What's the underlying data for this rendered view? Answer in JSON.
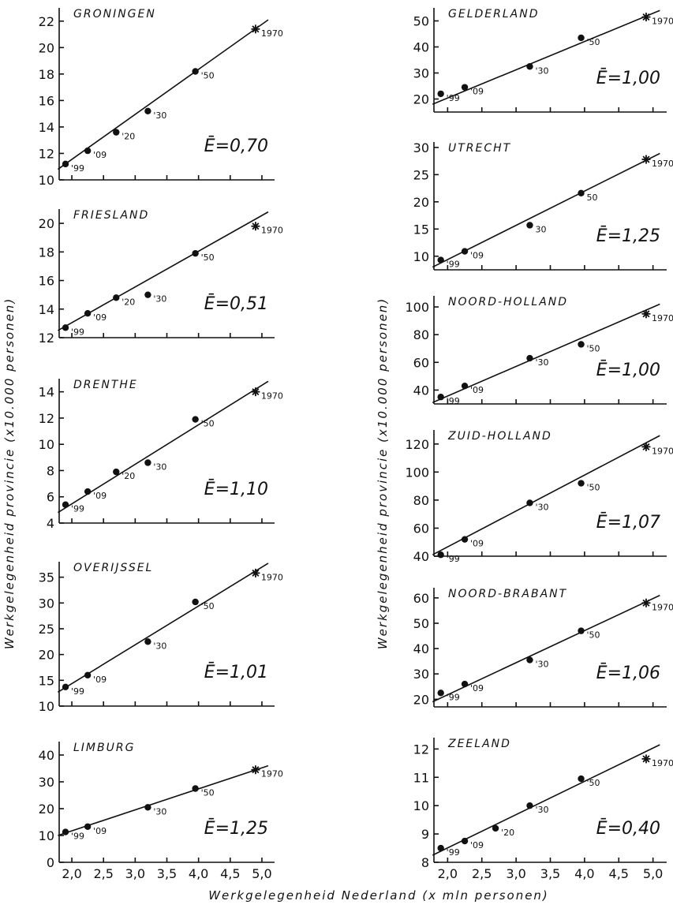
{
  "figure": {
    "ylabel": "Werkgelegenheid provincie (x10.000 personen)",
    "xlabel": "Werkgelegenheid Nederland (x mln personen)"
  },
  "chart_data": [
    {
      "type": "scatter",
      "title": "GRONINGEN",
      "elasticity": "Ē=0,70",
      "yticks": [
        10,
        12,
        14,
        16,
        18,
        20,
        22
      ],
      "ylim": [
        10,
        23
      ],
      "xlim": [
        1.8,
        5.2
      ],
      "points": [
        {
          "x": 1.9,
          "y": 11.2,
          "label": "'99"
        },
        {
          "x": 2.25,
          "y": 12.2,
          "label": "'09"
        },
        {
          "x": 2.7,
          "y": 13.6,
          "label": "'20"
        },
        {
          "x": 3.2,
          "y": 15.2,
          "label": "'30"
        },
        {
          "x": 3.95,
          "y": 18.2,
          "label": "'50"
        },
        {
          "x": 4.9,
          "y": 21.4,
          "label": "1970",
          "marker": "star"
        }
      ],
      "fit": [
        [
          1.78,
          10.8
        ],
        [
          5.1,
          22.1
        ]
      ]
    },
    {
      "type": "scatter",
      "title": "GELDERLAND",
      "elasticity": "Ē=1,00",
      "yticks": [
        20,
        30,
        40,
        50
      ],
      "ylim": [
        15,
        55
      ],
      "xlim": [
        1.8,
        5.2
      ],
      "points": [
        {
          "x": 1.9,
          "y": 22,
          "label": "'99"
        },
        {
          "x": 2.25,
          "y": 24.5,
          "label": "'09"
        },
        {
          "x": 3.2,
          "y": 32.5,
          "label": "'30"
        },
        {
          "x": 3.95,
          "y": 43.5,
          "label": "'50"
        },
        {
          "x": 4.9,
          "y": 51.5,
          "label": "1970",
          "marker": "star"
        }
      ],
      "fit": [
        [
          1.78,
          18
        ],
        [
          5.1,
          54
        ]
      ]
    },
    {
      "type": "scatter",
      "title": "FRIESLAND",
      "elasticity": "Ē=0,51",
      "yticks": [
        12,
        14,
        16,
        18,
        20
      ],
      "ylim": [
        12,
        21
      ],
      "xlim": [
        1.8,
        5.2
      ],
      "points": [
        {
          "x": 1.9,
          "y": 12.7,
          "label": "'99"
        },
        {
          "x": 2.25,
          "y": 13.7,
          "label": "'09"
        },
        {
          "x": 2.7,
          "y": 14.8,
          "label": "'20"
        },
        {
          "x": 3.2,
          "y": 15.0,
          "label": "'30"
        },
        {
          "x": 3.95,
          "y": 17.9,
          "label": "'50"
        },
        {
          "x": 4.9,
          "y": 19.8,
          "label": "1970",
          "marker": "star"
        }
      ],
      "fit": [
        [
          1.78,
          12.5
        ],
        [
          5.1,
          20.8
        ]
      ]
    },
    {
      "type": "scatter",
      "title": "UTRECHT",
      "elasticity": "Ē=1,25",
      "yticks": [
        10,
        15,
        20,
        25,
        30
      ],
      "ylim": [
        7.5,
        31
      ],
      "xlim": [
        1.8,
        5.2
      ],
      "points": [
        {
          "x": 1.9,
          "y": 9.3,
          "label": "'99"
        },
        {
          "x": 2.25,
          "y": 10.9,
          "label": "'09"
        },
        {
          "x": 3.2,
          "y": 15.7,
          "label": "30"
        },
        {
          "x": 3.95,
          "y": 21.6,
          "label": "50"
        },
        {
          "x": 4.9,
          "y": 27.8,
          "label": "1970",
          "marker": "star"
        }
      ],
      "fit": [
        [
          1.78,
          8.0
        ],
        [
          5.1,
          28.9
        ]
      ]
    },
    {
      "type": "scatter",
      "title": "DRENTHE",
      "elasticity": "Ē=1,10",
      "yticks": [
        4,
        6,
        8,
        10,
        12,
        14
      ],
      "ylim": [
        4,
        15
      ],
      "xlim": [
        1.8,
        5.2
      ],
      "points": [
        {
          "x": 1.9,
          "y": 5.4,
          "label": "'99"
        },
        {
          "x": 2.25,
          "y": 6.4,
          "label": "'09"
        },
        {
          "x": 2.7,
          "y": 7.9,
          "label": "'20"
        },
        {
          "x": 3.2,
          "y": 8.6,
          "label": "'30"
        },
        {
          "x": 3.95,
          "y": 11.9,
          "label": "'50"
        },
        {
          "x": 4.9,
          "y": 14.0,
          "label": "1970",
          "marker": "star"
        }
      ],
      "fit": [
        [
          1.78,
          4.8
        ],
        [
          5.1,
          14.8
        ]
      ]
    },
    {
      "type": "scatter",
      "title": "NOORD-HOLLAND",
      "elasticity": "Ē=1,00",
      "yticks": [
        40,
        60,
        80,
        100
      ],
      "ylim": [
        30,
        108
      ],
      "xlim": [
        1.8,
        5.2
      ],
      "points": [
        {
          "x": 1.9,
          "y": 35,
          "label": "'99"
        },
        {
          "x": 2.25,
          "y": 43,
          "label": "'09"
        },
        {
          "x": 3.2,
          "y": 63,
          "label": "'30"
        },
        {
          "x": 3.95,
          "y": 73,
          "label": "'50"
        },
        {
          "x": 4.9,
          "y": 95,
          "label": "1970",
          "marker": "star"
        }
      ],
      "fit": [
        [
          1.78,
          31
        ],
        [
          5.1,
          102
        ]
      ]
    },
    {
      "type": "scatter",
      "title": "OVERIJSSEL",
      "elasticity": "Ē=1,01",
      "yticks": [
        10,
        15,
        20,
        25,
        30,
        35
      ],
      "ylim": [
        10,
        38
      ],
      "xlim": [
        1.8,
        5.2
      ],
      "points": [
        {
          "x": 1.9,
          "y": 13.7,
          "label": "'99"
        },
        {
          "x": 2.25,
          "y": 16.0,
          "label": "'09"
        },
        {
          "x": 3.2,
          "y": 22.5,
          "label": "'30"
        },
        {
          "x": 3.95,
          "y": 30.2,
          "label": "'50"
        },
        {
          "x": 4.9,
          "y": 35.8,
          "label": "1970",
          "marker": "star"
        }
      ],
      "fit": [
        [
          1.78,
          12.7
        ],
        [
          5.1,
          37.7
        ]
      ]
    },
    {
      "type": "scatter",
      "title": "ZUID-HOLLAND",
      "elasticity": "Ē=1,07",
      "yticks": [
        40,
        60,
        80,
        100,
        120
      ],
      "ylim": [
        40,
        130
      ],
      "xlim": [
        1.8,
        5.2
      ],
      "points": [
        {
          "x": 1.9,
          "y": 41,
          "label": "'99"
        },
        {
          "x": 2.25,
          "y": 52,
          "label": "'09"
        },
        {
          "x": 3.2,
          "y": 78,
          "label": "'30"
        },
        {
          "x": 3.95,
          "y": 92,
          "label": "'50"
        },
        {
          "x": 4.9,
          "y": 118,
          "label": "1970",
          "marker": "star"
        }
      ],
      "fit": [
        [
          1.78,
          41
        ],
        [
          5.1,
          126
        ]
      ]
    },
    {
      "type": "scatter",
      "title": "LIMBURG",
      "elasticity": "Ē=1,25",
      "yticks": [
        0,
        10,
        20,
        30,
        40
      ],
      "ylim": [
        0,
        45
      ],
      "xlim": [
        1.8,
        5.2
      ],
      "points": [
        {
          "x": 1.9,
          "y": 11.3,
          "label": "'99"
        },
        {
          "x": 2.25,
          "y": 13.3,
          "label": "'09"
        },
        {
          "x": 3.2,
          "y": 20.5,
          "label": "'30"
        },
        {
          "x": 3.95,
          "y": 27.5,
          "label": "'50"
        },
        {
          "x": 4.9,
          "y": 34.5,
          "label": "1970",
          "marker": "star"
        }
      ],
      "fit": [
        [
          1.78,
          10
        ],
        [
          5.1,
          36
        ]
      ]
    },
    {
      "type": "scatter",
      "title": "NOORD-BRABANT",
      "elasticity": "Ē=1,06",
      "yticks": [
        20,
        30,
        40,
        50,
        60
      ],
      "ylim": [
        17,
        64
      ],
      "xlim": [
        1.8,
        5.2
      ],
      "points": [
        {
          "x": 1.9,
          "y": 22.5,
          "label": "'99"
        },
        {
          "x": 2.25,
          "y": 26,
          "label": "'09"
        },
        {
          "x": 3.2,
          "y": 35.5,
          "label": "'30"
        },
        {
          "x": 3.95,
          "y": 47,
          "label": "'50"
        },
        {
          "x": 4.9,
          "y": 58,
          "label": "1970",
          "marker": "star"
        }
      ],
      "fit": [
        [
          1.78,
          19
        ],
        [
          5.1,
          61
        ]
      ]
    },
    {
      "type": "scatter",
      "title": "ZEELAND",
      "elasticity": "Ē=0,40",
      "yticks": [
        8,
        9,
        10,
        11,
        12
      ],
      "ylim": [
        8,
        12.4
      ],
      "xlim": [
        1.8,
        5.2
      ],
      "xticks": [
        "2,0",
        "2,5",
        "3,0",
        "3,5",
        "4,0",
        "4,5",
        "5,0"
      ],
      "points": [
        {
          "x": 1.9,
          "y": 8.5,
          "label": "'99"
        },
        {
          "x": 2.25,
          "y": 8.75,
          "label": "'09"
        },
        {
          "x": 2.7,
          "y": 9.2,
          "label": "'20"
        },
        {
          "x": 3.2,
          "y": 10.0,
          "label": "'30"
        },
        {
          "x": 3.95,
          "y": 10.95,
          "label": "'50"
        },
        {
          "x": 4.9,
          "y": 11.65,
          "label": "1970",
          "marker": "star"
        }
      ],
      "fit": [
        [
          1.78,
          8.25
        ],
        [
          5.1,
          12.15
        ]
      ]
    }
  ],
  "bottom_xticks": [
    "2,0",
    "2,5",
    "3,0",
    "3,5",
    "4,0",
    "4,5",
    "5,0"
  ]
}
